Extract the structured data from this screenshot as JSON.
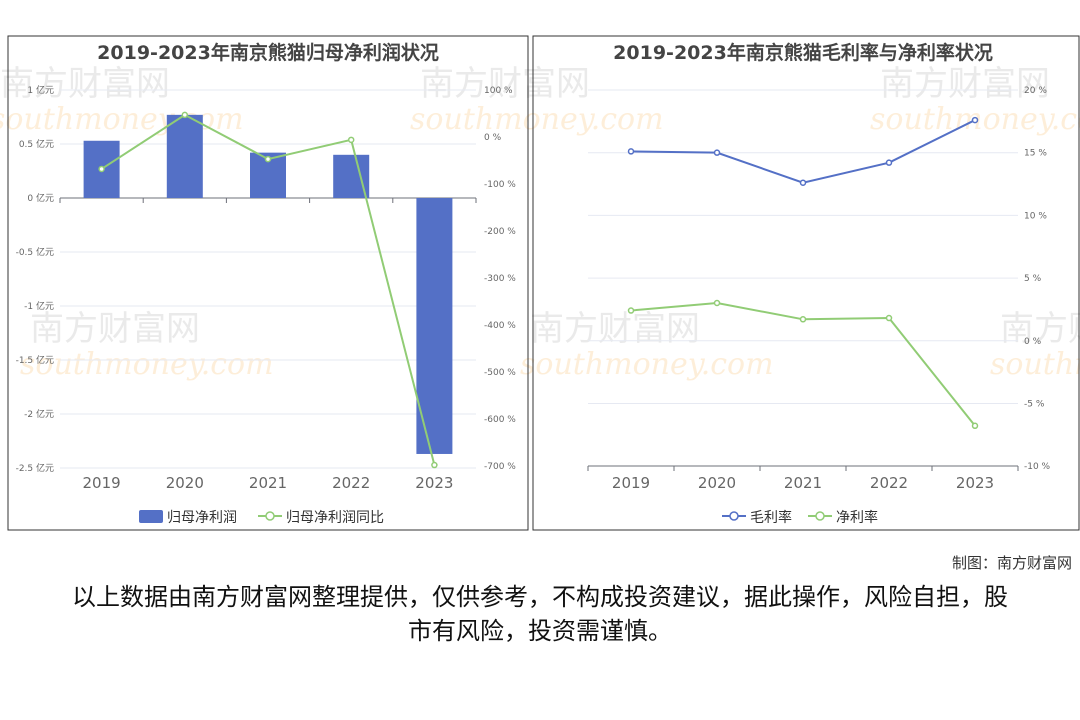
{
  "chart_data": [
    {
      "type": "bar+line",
      "title": "2019-2023年南京熊猫归母净利润状况",
      "categories": [
        "2019",
        "2020",
        "2021",
        "2022",
        "2023"
      ],
      "series": [
        {
          "name": "归母净利润",
          "type": "bar",
          "axis": "left",
          "unit": "亿元",
          "values": [
            0.53,
            0.77,
            0.42,
            0.4,
            -2.37
          ],
          "color": "#5470c6"
        },
        {
          "name": "归母净利润同比",
          "type": "line",
          "axis": "right",
          "unit": "%",
          "values": [
            -68,
            47,
            -47,
            -6,
            -698
          ],
          "color": "#91cc75"
        }
      ],
      "left_axis": {
        "ylim": [
          -2.5,
          1
        ],
        "ticks": [
          "1 亿元",
          "0.5 亿元",
          "0 亿元",
          "-0.5 亿元",
          "-1 亿元",
          "-1.5 亿元",
          "-2 亿元",
          "-2.5 亿元"
        ]
      },
      "right_axis": {
        "ylim": [
          -700,
          100
        ],
        "ticks": [
          "100 %",
          "0 %",
          "-100 %",
          "-200 %",
          "-300 %",
          "-400 %",
          "-500 %",
          "-600 %",
          "-700 %"
        ]
      },
      "legend": "bottom",
      "grid": true
    },
    {
      "type": "line",
      "title": "2019-2023年南京熊猫毛利率与净利率状况",
      "categories": [
        "2019",
        "2020",
        "2021",
        "2022",
        "2023"
      ],
      "series": [
        {
          "name": "毛利率",
          "values": [
            15.1,
            15.0,
            12.6,
            14.2,
            17.6
          ],
          "color": "#5470c6"
        },
        {
          "name": "净利率",
          "values": [
            2.4,
            3.0,
            1.7,
            1.8,
            -6.8
          ],
          "color": "#91cc75"
        }
      ],
      "right_axis": {
        "ylim": [
          -10,
          20
        ],
        "ticks": [
          "20 %",
          "15 %",
          "10 %",
          "5 %",
          "0 %",
          "-5 %",
          "-10 %"
        ]
      },
      "legend": "bottom",
      "grid": true
    }
  ],
  "watermark": "南方财富网 southmoney.com",
  "credit": "制图：南方财富网",
  "disclaimer": "以上数据由南方财富网整理提供，仅供参考，不构成投资建议，据此操作，风险自担，股市有风险，投资需谨慎。"
}
